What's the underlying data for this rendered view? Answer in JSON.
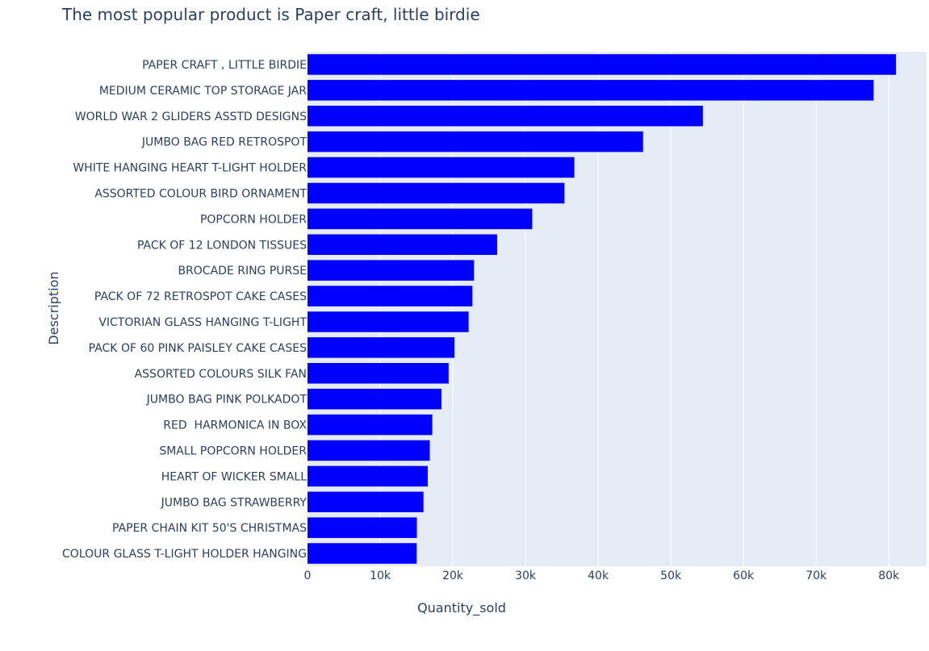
{
  "colors": {
    "bar": "#0000ff",
    "plot_bg": "#e5ecf6",
    "grid": "#ffffff",
    "text": "#2a3f5f",
    "page_bg": "#ffffff"
  },
  "chart_data": {
    "type": "bar",
    "orientation": "horizontal",
    "title": "The most popular product is Paper craft, little birdie",
    "xlabel": "Quantity_sold",
    "ylabel": "Description",
    "xlim": [
      0,
      85200
    ],
    "x_ticks": [
      0,
      10000,
      20000,
      30000,
      40000,
      50000,
      60000,
      70000,
      80000
    ],
    "x_tick_labels": [
      "0",
      "10k",
      "20k",
      "30k",
      "40k",
      "50k",
      "60k",
      "70k",
      "80k"
    ],
    "grid": true,
    "categories": [
      "PAPER CRAFT , LITTLE BIRDIE",
      "MEDIUM CERAMIC TOP STORAGE JAR",
      "WORLD WAR 2 GLIDERS ASSTD DESIGNS",
      "JUMBO BAG RED RETROSPOT",
      "WHITE HANGING HEART T-LIGHT HOLDER",
      "ASSORTED COLOUR BIRD ORNAMENT",
      "POPCORN HOLDER",
      "PACK OF 12 LONDON TISSUES",
      "BROCADE RING PURSE",
      "PACK OF 72 RETROSPOT CAKE CASES",
      "VICTORIAN GLASS HANGING T-LIGHT",
      "PACK OF 60 PINK PAISLEY CAKE CASES",
      "ASSORTED COLOURS SILK FAN",
      "JUMBO BAG PINK POLKADOT",
      "RED  HARMONICA IN BOX",
      "SMALL POPCORN HOLDER",
      "HEART OF WICKER SMALL",
      "JUMBO BAG STRAWBERRY",
      "PAPER CHAIN KIT 50'S CHRISTMAS",
      "COLOUR GLASS T-LIGHT HOLDER HANGING"
    ],
    "values": [
      80995,
      77916,
      54415,
      46181,
      36725,
      35362,
      30931,
      26095,
      22914,
      22696,
      22173,
      20233,
      19425,
      18434,
      17176,
      16830,
      16544,
      15960,
      15052,
      15029
    ]
  }
}
